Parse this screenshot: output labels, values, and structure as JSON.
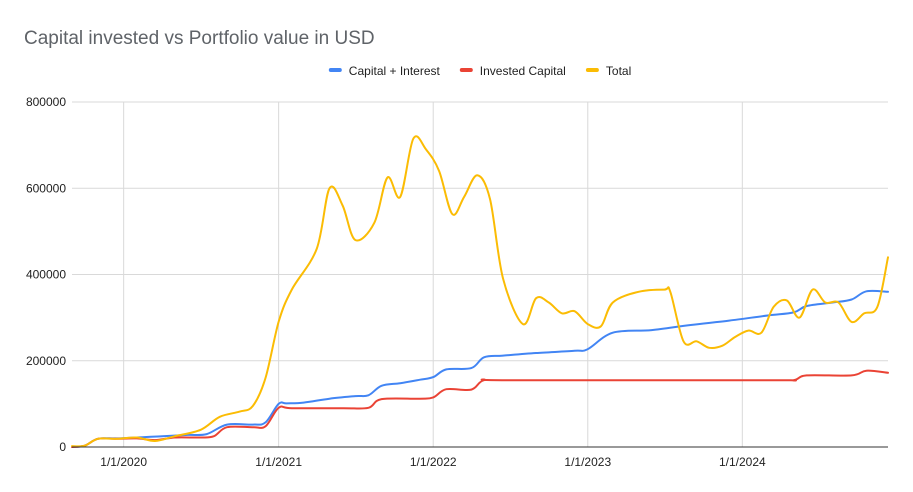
{
  "chart_data": {
    "type": "line",
    "title": "Capital invested vs Portfolio value in USD",
    "xlabel": "",
    "ylabel": "",
    "x_ticks": [
      "1/1/2020",
      "1/1/2021",
      "1/1/2022",
      "1/1/2023",
      "1/1/2024"
    ],
    "y_ticks": [
      "0",
      "200000",
      "400000",
      "600000",
      "800000"
    ],
    "ylim": [
      0,
      800000
    ],
    "xlim": [
      "2019-09-01",
      "2024-12-10"
    ],
    "grid": true,
    "legend_position": "top",
    "series": [
      {
        "name": "Capital + Interest",
        "color": "#4285f4",
        "points": [
          [
            "2019-09-01",
            0
          ],
          [
            "2019-10-01",
            3000
          ],
          [
            "2019-11-01",
            19000
          ],
          [
            "2019-12-15",
            20000
          ],
          [
            "2020-02-01",
            22000
          ],
          [
            "2020-04-01",
            25000
          ],
          [
            "2020-06-01",
            28000
          ],
          [
            "2020-07-15",
            30000
          ],
          [
            "2020-09-01",
            52000
          ],
          [
            "2020-11-01",
            52000
          ],
          [
            "2020-12-01",
            57000
          ],
          [
            "2021-01-01",
            100000
          ],
          [
            "2021-01-20",
            101000
          ],
          [
            "2021-03-01",
            103000
          ],
          [
            "2021-05-01",
            112000
          ],
          [
            "2021-07-01",
            118000
          ],
          [
            "2021-08-01",
            120000
          ],
          [
            "2021-09-01",
            142000
          ],
          [
            "2021-10-15",
            148000
          ],
          [
            "2021-12-01",
            156000
          ],
          [
            "2022-01-01",
            162000
          ],
          [
            "2022-02-01",
            180000
          ],
          [
            "2022-04-01",
            183000
          ],
          [
            "2022-05-01",
            208000
          ],
          [
            "2022-06-15",
            212000
          ],
          [
            "2022-09-01",
            218000
          ],
          [
            "2022-12-01",
            223000
          ],
          [
            "2023-01-01",
            227000
          ],
          [
            "2023-03-01",
            265000
          ],
          [
            "2023-06-01",
            271000
          ],
          [
            "2023-09-01",
            283000
          ],
          [
            "2023-12-01",
            293000
          ],
          [
            "2024-03-01",
            305000
          ],
          [
            "2024-05-01",
            312000
          ],
          [
            "2024-06-01",
            327000
          ],
          [
            "2024-08-01",
            335000
          ],
          [
            "2024-09-15",
            342000
          ],
          [
            "2024-10-20",
            361000
          ],
          [
            "2024-12-10",
            360000
          ]
        ]
      },
      {
        "name": "Invested Capital",
        "color": "#ea4335",
        "points": [
          [
            "2019-09-01",
            0
          ],
          [
            "2019-10-01",
            3000
          ],
          [
            "2019-11-01",
            19000
          ],
          [
            "2019-12-15",
            19000
          ],
          [
            "2020-02-01",
            20000
          ],
          [
            "2020-03-15",
            16000
          ],
          [
            "2020-05-01",
            22000
          ],
          [
            "2020-07-01",
            22000
          ],
          [
            "2020-08-01",
            25000
          ],
          [
            "2020-09-01",
            46000
          ],
          [
            "2020-11-01",
            46000
          ],
          [
            "2020-12-01",
            48000
          ],
          [
            "2021-01-01",
            91000
          ],
          [
            "2021-02-01",
            90000
          ],
          [
            "2021-06-01",
            90000
          ],
          [
            "2021-08-01",
            91000
          ],
          [
            "2021-09-01",
            111000
          ],
          [
            "2021-12-01",
            112000
          ],
          [
            "2022-01-01",
            115000
          ],
          [
            "2022-02-01",
            134000
          ],
          [
            "2022-04-01",
            133000
          ],
          [
            "2022-05-01",
            155000
          ],
          [
            "2022-07-01",
            155000
          ],
          [
            "2024-03-01",
            155000
          ],
          [
            "2024-05-01",
            155000
          ],
          [
            "2024-06-01",
            166000
          ],
          [
            "2024-09-15",
            166000
          ],
          [
            "2024-10-20",
            177000
          ],
          [
            "2024-12-10",
            172000
          ]
        ]
      },
      {
        "name": "Total",
        "color": "#fbbc04",
        "points": [
          [
            "2019-09-01",
            2000
          ],
          [
            "2019-10-01",
            3000
          ],
          [
            "2019-11-01",
            19000
          ],
          [
            "2019-12-15",
            19000
          ],
          [
            "2020-02-01",
            22000
          ],
          [
            "2020-03-15",
            14000
          ],
          [
            "2020-05-01",
            25000
          ],
          [
            "2020-07-01",
            40000
          ],
          [
            "2020-08-15",
            70000
          ],
          [
            "2020-10-01",
            82000
          ],
          [
            "2020-11-01",
            95000
          ],
          [
            "2020-12-01",
            160000
          ],
          [
            "2021-01-01",
            290000
          ],
          [
            "2021-02-01",
            365000
          ],
          [
            "2021-04-01",
            460000
          ],
          [
            "2021-05-01",
            600000
          ],
          [
            "2021-06-01",
            560000
          ],
          [
            "2021-07-01",
            480000
          ],
          [
            "2021-08-15",
            520000
          ],
          [
            "2021-09-15",
            625000
          ],
          [
            "2021-10-15",
            580000
          ],
          [
            "2021-11-15",
            715000
          ],
          [
            "2021-12-15",
            690000
          ],
          [
            "2022-01-15",
            640000
          ],
          [
            "2022-02-15",
            540000
          ],
          [
            "2022-03-15",
            580000
          ],
          [
            "2022-04-15",
            630000
          ],
          [
            "2022-05-15",
            575000
          ],
          [
            "2022-06-15",
            390000
          ],
          [
            "2022-08-01",
            285000
          ],
          [
            "2022-09-01",
            345000
          ],
          [
            "2022-10-01",
            335000
          ],
          [
            "2022-11-01",
            310000
          ],
          [
            "2022-12-01",
            315000
          ],
          [
            "2023-01-01",
            285000
          ],
          [
            "2023-02-01",
            280000
          ],
          [
            "2023-03-01",
            335000
          ],
          [
            "2023-05-01",
            360000
          ],
          [
            "2023-07-01",
            365000
          ],
          [
            "2023-07-15",
            360000
          ],
          [
            "2023-08-15",
            245000
          ],
          [
            "2023-09-15",
            245000
          ],
          [
            "2023-10-15",
            230000
          ],
          [
            "2023-11-15",
            235000
          ],
          [
            "2023-12-15",
            255000
          ],
          [
            "2024-01-15",
            270000
          ],
          [
            "2024-02-15",
            265000
          ],
          [
            "2024-03-15",
            325000
          ],
          [
            "2024-04-15",
            340000
          ],
          [
            "2024-05-15",
            300000
          ],
          [
            "2024-06-15",
            365000
          ],
          [
            "2024-07-15",
            335000
          ],
          [
            "2024-08-15",
            335000
          ],
          [
            "2024-09-15",
            290000
          ],
          [
            "2024-10-15",
            310000
          ],
          [
            "2024-11-15",
            325000
          ],
          [
            "2024-12-10",
            440000
          ]
        ]
      }
    ]
  }
}
